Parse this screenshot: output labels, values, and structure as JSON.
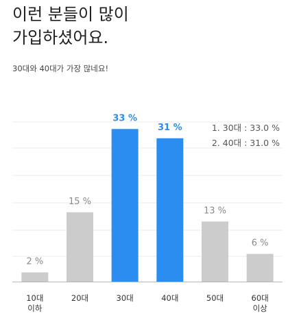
{
  "header": {
    "title_line1": "이런 분들이 많이",
    "title_line2": "가입하셨어요.",
    "subtitle": "30대와 40대가 가장 많네요!"
  },
  "ranking": [
    "1. 30대 : 33.0 %",
    "2. 40대 : 31.0 %"
  ],
  "colors": {
    "highlight": "#2b8df0",
    "default_bar": "#cccccc",
    "label_default": "#8a8a8a",
    "gridline": "#eeeeee",
    "baseline": "#b8b8b8"
  },
  "chart_data": {
    "type": "bar",
    "categories": [
      [
        "10대",
        "이하"
      ],
      [
        "20대"
      ],
      [
        "30대"
      ],
      [
        "40대"
      ],
      [
        "50대"
      ],
      [
        "60대",
        "이상"
      ]
    ],
    "values": [
      2,
      15,
      33,
      31,
      13,
      6
    ],
    "value_labels": [
      "2 %",
      "15 %",
      "33 %",
      "31 %",
      "13 %",
      "6 %"
    ],
    "highlighted": [
      false,
      false,
      true,
      true,
      false,
      false
    ],
    "ylim": [
      0,
      40
    ],
    "grid": true,
    "title": "",
    "xlabel": "",
    "ylabel": ""
  }
}
